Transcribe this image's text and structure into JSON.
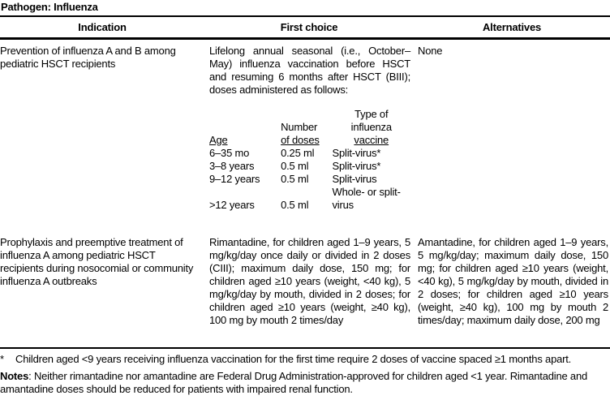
{
  "page": {
    "title": "Pathogen: Influenza"
  },
  "table": {
    "headers": [
      "Indication",
      "First choice",
      "Alternatives"
    ],
    "rows": [
      {
        "indication": "Prevention of influenza A and B among pediatric HSCT recipients",
        "first_choice": "Lifelong annual seasonal (i.e., October–May) influenza vaccination before HSCT and resuming 6 months after HSCT (BIII); doses administered as follows:",
        "alternatives": "None"
      },
      {
        "indication": "Prophylaxis and preemptive treatment of influenza A among pediatric HSCT recipients during nosocomial or community influenza A outbreaks",
        "first_choice": "Rimantadine, for children aged 1–9 years, 5 mg/kg/day once daily or divided in 2 doses (CIII); maximum daily dose, 150 mg; for children aged ≥10 years (weight, <40 kg), 5 mg/kg/day by mouth, divided in 2 doses; for children aged ≥10 years (weight, ≥40 kg), 100 mg by mouth 2 times/day",
        "alternatives": "Amantadine, for children aged 1–9 years, 5 mg/kg/day; maximum daily dose, 150 mg; for children aged ≥10 years (weight, <40 kg), 5 mg/kg/day by mouth, divided in 2 doses; for children aged ≥10 years (weight, ≥40 kg), 100 mg by mouth 2 times/day; maximum daily dose, 200 mg"
      }
    ]
  },
  "dose_table": {
    "col1_header": "Age",
    "col2_header_line1": "Number",
    "col2_header_line2": "of doses",
    "col3_header_line1": "Type of",
    "col3_header_line2": "influenza",
    "col3_header_line3": "vaccine",
    "rows": [
      {
        "age": "6–35 mo",
        "doses": "0.25 ml",
        "type": "Split-virus*"
      },
      {
        "age": "3–8 years",
        "doses": "0.5 ml",
        "type": "Split-virus*"
      },
      {
        "age": "9–12 years",
        "doses": "0.5 ml",
        "type": "Split-virus"
      },
      {
        "age": ">12 years",
        "doses": "0.5 ml",
        "type": "Whole- or split-virus"
      }
    ]
  },
  "footnotes": {
    "asterisk_marker": "*",
    "asterisk_text": "Children aged <9 years receiving influenza vaccination for the first time require 2 doses of vaccine spaced ≥1 months apart.",
    "notes_label": "Notes",
    "notes_text": ": Neither rimantadine nor amantadine are Federal Drug Administration-approved for children aged <1 year. Rimantadine and amantadine doses should be reduced for patients with impaired renal function."
  }
}
